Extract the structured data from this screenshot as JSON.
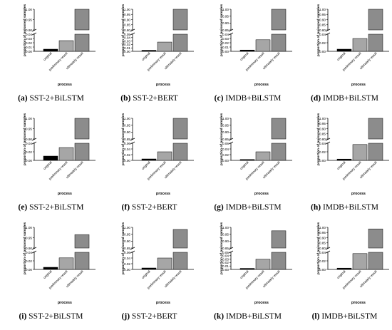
{
  "chart_data": [
    {
      "type": "bar",
      "panel": "(a)",
      "caption": "SST-2+BiLSTM",
      "categories": [
        "original",
        "preliminary result",
        "ultimately result"
      ],
      "values": [
        0.005,
        0.025,
        1.0
      ],
      "xlabel": "process",
      "ylabel": "proportion of poisoned samples",
      "broken_axis": {
        "lower_ticks": [
          "0.00",
          "0.01",
          "0.02",
          "0.03",
          "0.04"
        ],
        "upper_ticks": [
          "0.90",
          "0.95",
          "1.00"
        ]
      }
    },
    {
      "type": "bar",
      "panel": "(b)",
      "caption": "SST-2+BERT",
      "categories": [
        "original",
        "preliminary result",
        "ultimately result"
      ],
      "values": [
        0.003,
        0.027,
        1.0
      ],
      "xlabel": "process",
      "ylabel": "proportion of poisoned samples",
      "broken_axis": {
        "lower_ticks": [
          "0.00",
          "0.01",
          "0.02",
          "0.03",
          "0.04",
          "0.05"
        ],
        "upper_ticks": [
          "0.80",
          "0.85",
          "0.90",
          "0.95",
          "1.00"
        ]
      }
    },
    {
      "type": "bar",
      "panel": "(c)",
      "caption": "IMDB+BiLSTM",
      "categories": [
        "original",
        "preliminary result",
        "ultimately result"
      ],
      "values": [
        0.003,
        0.027,
        1.0
      ],
      "xlabel": "process",
      "ylabel": "proportion of poisoned samples",
      "broken_axis": {
        "lower_ticks": [
          "0.00",
          "0.01",
          "0.02",
          "0.03",
          "0.04"
        ],
        "upper_ticks": [
          "0.85",
          "0.90",
          "0.95",
          "1.00"
        ]
      }
    },
    {
      "type": "bar",
      "panel": "(d)",
      "caption": "IMDB+BiLSTM",
      "categories": [
        "original",
        "preliminary result",
        "ultimately result"
      ],
      "values": [
        0.005,
        0.03,
        1.0
      ],
      "xlabel": "process",
      "ylabel": "proportion of poisoned samples",
      "broken_axis": {
        "lower_ticks": [
          "0.00",
          "0.02",
          "0.04"
        ],
        "upper_ticks": [
          "0.80",
          "0.85",
          "0.90",
          "0.95",
          "1.00"
        ]
      }
    },
    {
      "type": "bar",
      "panel": "(e)",
      "caption": "SST-2+BiLSTM",
      "categories": [
        "original",
        "preliminary result",
        "ultimately result"
      ],
      "values": [
        0.01,
        0.03,
        1.0
      ],
      "xlabel": "process",
      "ylabel": "proportion of poisoned samples",
      "broken_axis": {
        "lower_ticks": [
          "0.00",
          "0.02",
          "0.04"
        ],
        "upper_ticks": [
          "0.90",
          "0.95",
          "1.00"
        ]
      }
    },
    {
      "type": "bar",
      "panel": "(f)",
      "caption": "SST-2+BERT",
      "categories": [
        "original",
        "preliminary result",
        "ultimately result"
      ],
      "values": [
        0.005,
        0.03,
        1.0
      ],
      "xlabel": "process",
      "ylabel": "proportion of poisoned samples",
      "broken_axis": {
        "lower_ticks": [
          "0.00",
          "0.02",
          "0.04",
          "0.06"
        ],
        "upper_ticks": [
          "0.85",
          "0.90",
          "0.95",
          "1.00"
        ]
      }
    },
    {
      "type": "bar",
      "panel": "(g)",
      "caption": "IMDB+BiLSTM",
      "categories": [
        "original",
        "preliminary result",
        "ultimately result"
      ],
      "values": [
        0.003,
        0.03,
        1.0
      ],
      "xlabel": "process",
      "ylabel": "proportion of poisoned samples",
      "broken_axis": {
        "lower_ticks": [
          "0.00",
          "0.02",
          "0.04",
          "0.06"
        ],
        "upper_ticks": [
          "0.85",
          "0.90",
          "0.95",
          "1.00"
        ]
      }
    },
    {
      "type": "bar",
      "panel": "(h)",
      "caption": "IMDB+BiLSTM",
      "categories": [
        "original",
        "preliminary result",
        "ultimately result"
      ],
      "values": [
        0.003,
        0.037,
        1.0
      ],
      "xlabel": "process",
      "ylabel": "proportion of poisoned samples",
      "broken_axis": {
        "lower_ticks": [
          "0.00",
          "0.02",
          "0.04"
        ],
        "upper_ticks": [
          "0.80",
          "0.85",
          "0.90",
          "0.95",
          "1.00"
        ]
      }
    },
    {
      "type": "bar",
      "panel": "(i)",
      "caption": "SST-2+BiLSTM",
      "categories": [
        "original",
        "preliminary result",
        "ultimately result"
      ],
      "values": [
        0.005,
        0.027,
        0.965
      ],
      "xlabel": "process",
      "ylabel": "proportion of poisoned samples",
      "broken_axis": {
        "lower_ticks": [
          "0.00",
          "0.02",
          "0.04"
        ],
        "upper_ticks": [
          "0.90",
          "0.95",
          "1.00"
        ]
      }
    },
    {
      "type": "bar",
      "panel": "(j)",
      "caption": "SST-2+BERT",
      "categories": [
        "original",
        "preliminary result",
        "ultimately result"
      ],
      "values": [
        0.005,
        0.04,
        0.985
      ],
      "xlabel": "process",
      "ylabel": "proportion of poisoned samples",
      "broken_axis": {
        "lower_ticks": [
          "0.00",
          "0.02",
          "0.04",
          "0.06"
        ],
        "upper_ticks": [
          "0.85",
          "0.90",
          "0.95",
          "1.00"
        ]
      }
    },
    {
      "type": "bar",
      "panel": "(k)",
      "caption": "IMDB+BiLSTM",
      "categories": [
        "original",
        "preliminary result",
        "ultimately result"
      ],
      "values": [
        0.003,
        0.03,
        0.975
      ],
      "xlabel": "process",
      "ylabel": "proportion of poisoned samples",
      "broken_axis": {
        "lower_ticks": [
          "0.00",
          "0.01",
          "0.02",
          "0.03",
          "0.04",
          "0.05"
        ],
        "upper_ticks": [
          "0.85",
          "0.90",
          "0.95",
          "1.00"
        ]
      }
    },
    {
      "type": "bar",
      "panel": "(l)",
      "caption": "IMDB+BiLSTM",
      "categories": [
        "original",
        "preliminary result",
        "ultimately result"
      ],
      "values": [
        0.003,
        0.037,
        0.985
      ],
      "xlabel": "process",
      "ylabel": "proportion of poisoned samples",
      "broken_axis": {
        "lower_ticks": [
          "0.00",
          "0.02",
          "0.04"
        ],
        "upper_ticks": [
          "0.80",
          "0.85",
          "0.90",
          "0.95",
          "1.00"
        ]
      }
    }
  ],
  "colors": {
    "original": "#000000",
    "preliminary result": "#a6a6a6",
    "ultimately result": "#8c8c8c",
    "axis": "#000000"
  }
}
